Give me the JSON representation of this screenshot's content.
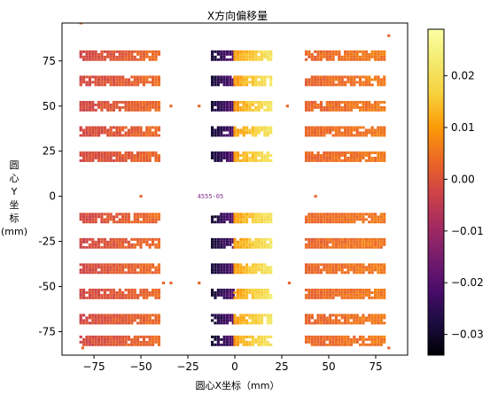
{
  "chart_data": {
    "type": "scatter",
    "title": "X方向偏移量",
    "xlabel": "圆心X坐标（mm）",
    "ylabel_lines": [
      "圆",
      "心",
      "Y",
      "坐",
      "标",
      "(mm)"
    ],
    "xlim": [
      -92,
      92
    ],
    "ylim": [
      -88,
      96
    ],
    "x_ticks": [
      -75,
      -50,
      -25,
      0,
      25,
      50,
      75
    ],
    "y_ticks": [
      75,
      50,
      25,
      0,
      -25,
      -50,
      -75
    ],
    "x_tick_labels": [
      "−75",
      "−50",
      "−25",
      "0",
      "25",
      "50",
      "75"
    ],
    "y_tick_labels": [
      "75",
      "50",
      "25",
      "0",
      "-25",
      "-50",
      "-75"
    ],
    "grid": false,
    "colormap": "inferno",
    "colorbar": {
      "vmin": -0.034,
      "vmax": 0.029,
      "ticks": [
        0.02,
        0.01,
        0.0,
        -0.01,
        -0.02,
        -0.03
      ],
      "tick_labels": [
        "0.02",
        "0.01",
        "0.00",
        "−0.01",
        "−0.02",
        "−0.03"
      ]
    },
    "annotation": {
      "text": "4555-05",
      "x": -13,
      "y": 0
    },
    "blocks": [
      {
        "x_range": [
          -82,
          -40
        ],
        "value_left": -0.002,
        "value_right": 0.004
      },
      {
        "x_range": [
          -12,
          0
        ],
        "value_left": -0.029,
        "value_right": -0.02
      },
      {
        "x_range": [
          0,
          20
        ],
        "value_left": 0.01,
        "value_right": 0.022
      },
      {
        "x_range": [
          38,
          80
        ],
        "value_left": 0.003,
        "value_right": 0.006
      }
    ],
    "row_y_centers": [
      78,
      64,
      50,
      36,
      22,
      -12,
      -26,
      -40,
      -54,
      -68,
      -80
    ],
    "row_height": 4.5
  }
}
